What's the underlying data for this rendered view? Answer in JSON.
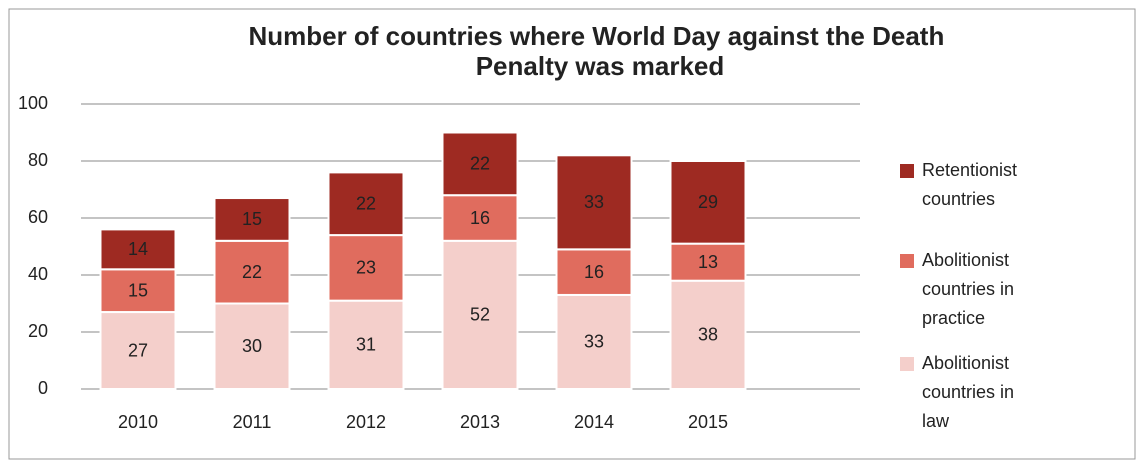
{
  "chart_data": {
    "type": "stacked_bar",
    "title": "Number of countries where World Day against the Death Penalty was marked",
    "categories": [
      "2010",
      "2011",
      "2012",
      "2013",
      "2014",
      "2015"
    ],
    "series": [
      {
        "name": "Abolitionist countries in law",
        "color": "#f4cfcb",
        "values": [
          27,
          30,
          31,
          52,
          33,
          38
        ]
      },
      {
        "name": "Abolitionist countries in practice",
        "color": "#e06c5e",
        "values": [
          15,
          22,
          23,
          16,
          16,
          13
        ]
      },
      {
        "name": "Retentionist countries",
        "color": "#9e2a22",
        "values": [
          14,
          15,
          22,
          22,
          33,
          29
        ]
      }
    ],
    "ylim": [
      0,
      100
    ],
    "yticks": [
      0,
      20,
      40,
      60,
      80,
      100
    ],
    "grid": true,
    "legend": "right"
  }
}
